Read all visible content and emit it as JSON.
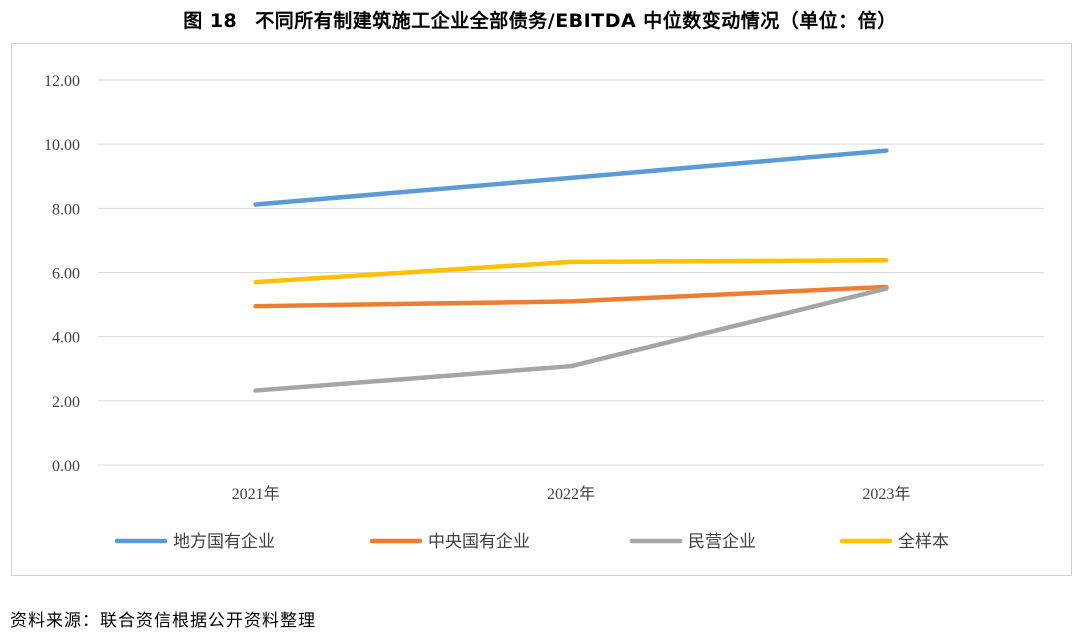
{
  "figure": {
    "number": "图 18",
    "title": "不同所有制建筑施工企业全部债务/EBITDA 中位数变动情况（单位：倍）",
    "source": "资料来源：联合资信根据公开资料整理"
  },
  "chart_data": {
    "type": "line",
    "title": "不同所有制建筑施工企业全部债务/EBITDA 中位数变动情况（单位：倍）",
    "categories": [
      "2021年",
      "2022年",
      "2023年"
    ],
    "ylim": [
      0,
      12
    ],
    "yticks": [
      "0.00",
      "2.00",
      "4.00",
      "6.00",
      "8.00",
      "10.00",
      "12.00"
    ],
    "grid": true,
    "legend_position": "bottom",
    "series": [
      {
        "name": "地方国有企业",
        "color": "#5B9BD5",
        "values": [
          8.12,
          8.95,
          9.8
        ]
      },
      {
        "name": "中央国有企业",
        "color": "#ED7D31",
        "values": [
          4.95,
          5.1,
          5.55
        ]
      },
      {
        "name": "民营企业",
        "color": "#A5A5A5",
        "values": [
          2.32,
          3.08,
          5.5
        ]
      },
      {
        "name": "全样本",
        "color": "#FFC000",
        "values": [
          5.7,
          6.33,
          6.38
        ]
      }
    ]
  }
}
